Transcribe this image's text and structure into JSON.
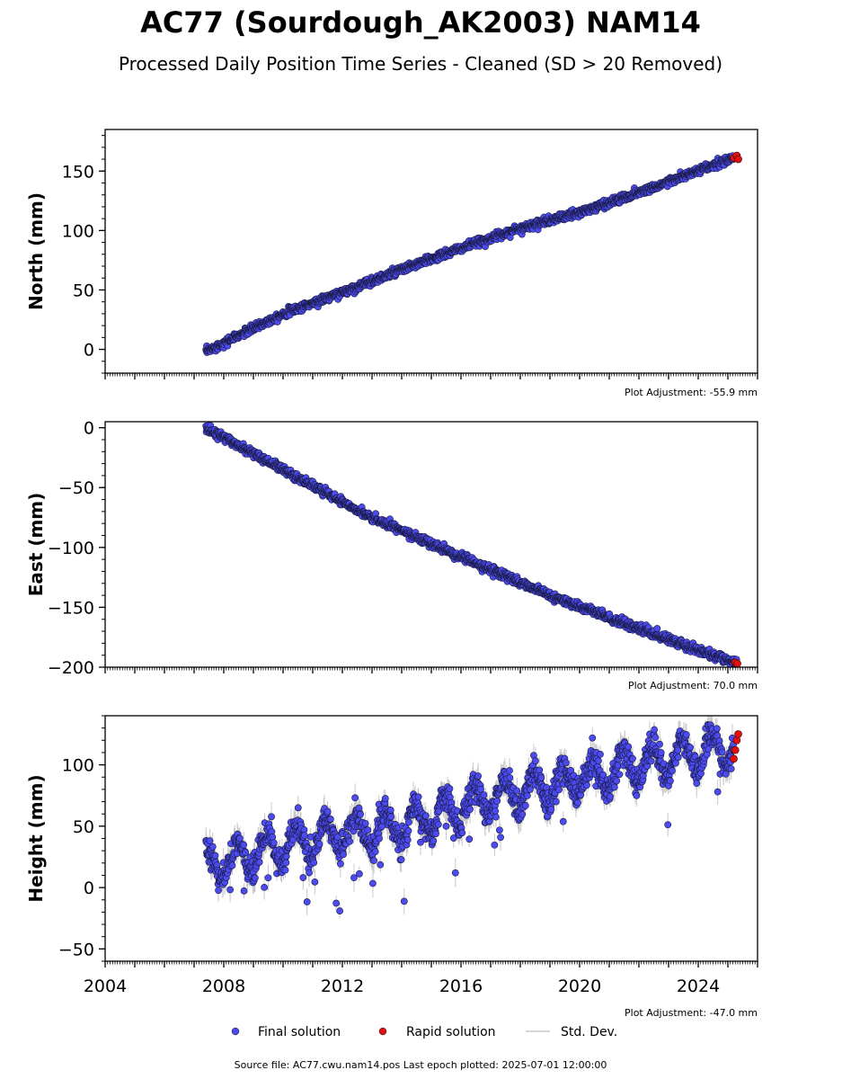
{
  "title": "AC77 (Sourdough_AK2003) NAM14",
  "subtitle": "Processed Daily Position Time Series - Cleaned (SD > 20 Removed)",
  "footer": "Source file: AC77.cwu.nam14.pos  Last epoch plotted: 2025-07-01 12:00:00",
  "legend": {
    "final_label": "Final solution",
    "rapid_label": "Rapid solution",
    "std_label": "Std. Dev."
  },
  "colors": {
    "final": "#4b4bf0",
    "rapid": "#e01010",
    "std": "#c8c8c8"
  },
  "chart_data": [
    {
      "type": "scatter",
      "ylabel": "North (mm)",
      "adjustment": "Plot Adjustment: -55.9 mm",
      "xlim": [
        2004,
        2026
      ],
      "ylim": [
        -20,
        185
      ],
      "yticks": [
        0,
        50,
        100,
        150
      ],
      "ytick_labels": [
        "0",
        "50",
        "100",
        "150"
      ],
      "final_trend": [
        [
          2007.4,
          -2
        ],
        [
          2010,
          30
        ],
        [
          2012,
          48
        ],
        [
          2014,
          67
        ],
        [
          2016,
          85
        ],
        [
          2018,
          102
        ],
        [
          2020,
          115
        ],
        [
          2022,
          132
        ],
        [
          2025.2,
          161
        ]
      ],
      "rapid": [
        [
          2025.2,
          161
        ],
        [
          2025.3,
          163
        ],
        [
          2025.35,
          160
        ]
      ]
    },
    {
      "type": "scatter",
      "ylabel": "East (mm)",
      "adjustment": "Plot Adjustment: 70.0 mm",
      "xlim": [
        2004,
        2026
      ],
      "ylim": [
        -200,
        5
      ],
      "yticks": [
        -200,
        -150,
        -100,
        -50,
        0
      ],
      "ytick_labels": [
        "−200",
        "−150",
        "−100",
        "−50",
        "0"
      ],
      "final_trend": [
        [
          2007.4,
          0
        ],
        [
          2010,
          -35
        ],
        [
          2013,
          -75
        ],
        [
          2016,
          -108
        ],
        [
          2019,
          -140
        ],
        [
          2022,
          -168
        ],
        [
          2025.3,
          -197
        ]
      ],
      "rapid": [
        [
          2025.25,
          -196
        ],
        [
          2025.32,
          -197
        ]
      ]
    },
    {
      "type": "scatter",
      "ylabel": "Height (mm)",
      "adjustment": "Plot Adjustment: -47.0 mm",
      "xlim": [
        2004,
        2026
      ],
      "ylim": [
        -60,
        140
      ],
      "yticks": [
        -50,
        0,
        50,
        100
      ],
      "ytick_labels": [
        "−50",
        "0",
        "50",
        "100"
      ],
      "xticks": [
        2004,
        2008,
        2012,
        2016,
        2020,
        2024
      ],
      "xtick_labels": [
        "2004",
        "2008",
        "2012",
        "2016",
        "2020",
        "2024"
      ],
      "final_trend": [
        [
          2007.4,
          15
        ],
        [
          2010,
          35
        ],
        [
          2012,
          45
        ],
        [
          2014,
          50
        ],
        [
          2016,
          65
        ],
        [
          2018,
          78
        ],
        [
          2020,
          88
        ],
        [
          2022,
          100
        ],
        [
          2025.2,
          115
        ]
      ],
      "rapid": [
        [
          2025.2,
          105
        ],
        [
          2025.25,
          112
        ],
        [
          2025.3,
          120
        ],
        [
          2025.35,
          125
        ]
      ]
    }
  ]
}
